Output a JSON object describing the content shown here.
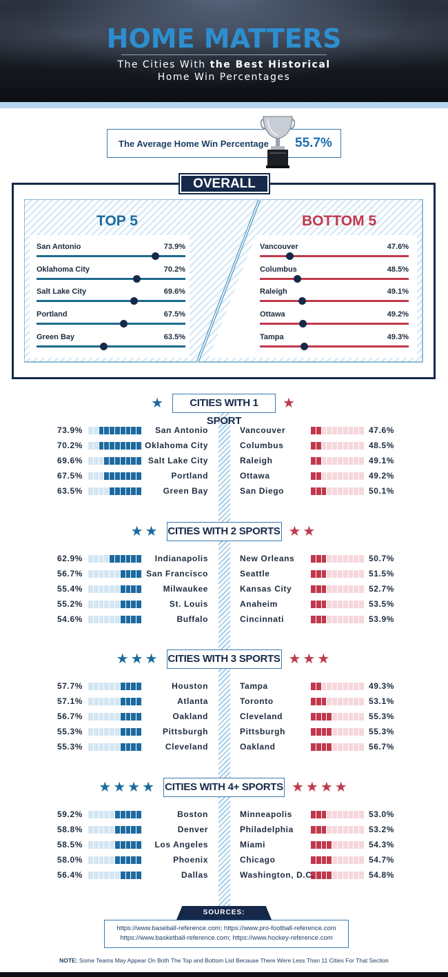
{
  "header": {
    "title": "HOME MATTERS",
    "subtitle_pre": "The Cities With ",
    "subtitle_bold": "the Best Historical",
    "subtitle_line2": "Home Win Percentages"
  },
  "average": {
    "label": "The Average Home Win Percentage",
    "value": "55.7%",
    "icon": "trophy-icon"
  },
  "colors": {
    "navy": "#16294a",
    "blue": "#1c6aa0",
    "red": "#c0394b",
    "light_blue": "#b7d7ee"
  },
  "chart_data": [
    {
      "type": "bar",
      "title": "OVERALL",
      "groups": [
        {
          "name": "TOP 5",
          "categories": [
            "San Antonio",
            "Oklahoma City",
            "Salt Lake City",
            "Portland",
            "Green Bay"
          ],
          "labels": [
            "73.9%",
            "70.2%",
            "69.6%",
            "67.5%",
            "63.5%"
          ],
          "values": [
            73.9,
            70.2,
            69.6,
            67.5,
            63.5
          ]
        },
        {
          "name": "BOTTOM 5",
          "categories": [
            "Vancouver",
            "Columbus",
            "Raleigh",
            "Ottawa",
            "Tampa"
          ],
          "labels": [
            "47.6%",
            "48.5%",
            "49.1%",
            "49.2%",
            "49.3%"
          ],
          "values": [
            47.6,
            48.5,
            49.1,
            49.2,
            49.3
          ]
        }
      ]
    },
    {
      "type": "bar",
      "title": "CITIES WITH 1 SPORT",
      "stars": 1,
      "groups": [
        {
          "name": "top",
          "categories": [
            "San Antonio",
            "Oklahoma City",
            "Salt Lake City",
            "Portland",
            "Green Bay"
          ],
          "labels": [
            "73.9%",
            "70.2%",
            "69.6%",
            "67.5%",
            "63.5%"
          ],
          "values": [
            73.9,
            70.2,
            69.6,
            67.5,
            63.5
          ]
        },
        {
          "name": "bottom",
          "categories": [
            "Vancouver",
            "Columbus",
            "Raleigh",
            "Ottawa",
            "San Diego"
          ],
          "labels": [
            "47.6%",
            "48.5%",
            "49.1%",
            "49.2%",
            "50.1%"
          ],
          "values": [
            47.6,
            48.5,
            49.1,
            49.2,
            50.1
          ]
        }
      ]
    },
    {
      "type": "bar",
      "title": "CITIES WITH 2 SPORTS",
      "stars": 2,
      "groups": [
        {
          "name": "top",
          "categories": [
            "Indianapolis",
            "San Francisco",
            "Milwaukee",
            "St. Louis",
            "Buffalo"
          ],
          "labels": [
            "62.9%",
            "56.7%",
            "55.4%",
            "55.2%",
            "54.6%"
          ],
          "values": [
            62.9,
            56.7,
            55.4,
            55.2,
            54.6
          ]
        },
        {
          "name": "bottom",
          "categories": [
            "New Orleans",
            "Seattle",
            "Kansas City",
            "Anaheim",
            "Cincinnati"
          ],
          "labels": [
            "50.7%",
            "51.5%",
            "52.7%",
            "53.5%",
            "53.9%"
          ],
          "values": [
            50.7,
            51.5,
            52.7,
            53.5,
            53.9
          ]
        }
      ]
    },
    {
      "type": "bar",
      "title": "CITIES WITH 3 SPORTS",
      "stars": 3,
      "groups": [
        {
          "name": "top",
          "categories": [
            "Houston",
            "Atlanta",
            "Oakland",
            "Pittsburgh",
            "Cleveland"
          ],
          "labels": [
            "57.7%",
            "57.1%",
            "56.7%",
            "55.3%",
            "55.3%"
          ],
          "values": [
            57.7,
            57.1,
            56.7,
            55.3,
            55.3
          ]
        },
        {
          "name": "bottom",
          "categories": [
            "Tampa",
            "Toronto",
            "Cleveland",
            "Pittsburgh",
            "Oakland"
          ],
          "labels": [
            "49.3%",
            "53.1%",
            "55.3%",
            "55.3%",
            "56.7%"
          ],
          "values": [
            49.3,
            53.1,
            55.3,
            55.3,
            56.7
          ]
        }
      ]
    },
    {
      "type": "bar",
      "title": "CITIES WITH 4+ SPORTS",
      "stars": 4,
      "groups": [
        {
          "name": "top",
          "categories": [
            "Boston",
            "Denver",
            "Los Angeles",
            "Phoenix",
            "Dallas"
          ],
          "labels": [
            "59.2%",
            "58.8%",
            "58.5%",
            "58.0%",
            "56.4%"
          ],
          "values": [
            59.2,
            58.8,
            58.5,
            58.0,
            56.4
          ]
        },
        {
          "name": "bottom",
          "categories": [
            "Minneapolis",
            "Philadelphia",
            "Miami",
            "Chicago",
            "Washington, D.C."
          ],
          "labels": [
            "53.0%",
            "53.2%",
            "54.3%",
            "54.7%",
            "54.8%"
          ],
          "values": [
            53.0,
            53.2,
            54.3,
            54.7,
            54.8
          ]
        }
      ]
    }
  ],
  "sources": {
    "label": "SOURCES:",
    "line1": "https://www.baseball-reference.com; https://www.pro-football-reference.com",
    "line2": "https://www.basketball-reference.com; https://www.hockey-reference.com"
  },
  "note": {
    "label": "NOTE:",
    "text": " Some Teams May Appear On Both The Top and Bottom List Because There Were Less Than 11 Cities For That Section"
  }
}
